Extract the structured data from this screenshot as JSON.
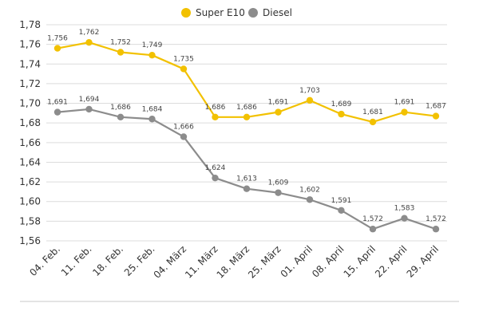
{
  "chart_data": {
    "type": "line",
    "categories": [
      "04. Feb.",
      "11. Feb.",
      "18. Feb.",
      "25. Feb.",
      "04. März",
      "11. März",
      "18. März",
      "25. März",
      "01. April",
      "08. April",
      "15. April",
      "22. April",
      "29. April"
    ],
    "series": [
      {
        "name": "Super E10",
        "color": "#f2c100",
        "values": [
          1.756,
          1.762,
          1.752,
          1.749,
          1.735,
          1.686,
          1.686,
          1.691,
          1.703,
          1.689,
          1.681,
          1.691,
          1.687
        ],
        "labels": [
          "1,756",
          "1,762",
          "1,752",
          "1,749",
          "1,735",
          "1,686",
          "1,686",
          "1,691",
          "1,703",
          "1,689",
          "1,681",
          "1,691",
          "1,687"
        ]
      },
      {
        "name": "Diesel",
        "color": "#8c8c8c",
        "values": [
          1.691,
          1.694,
          1.686,
          1.684,
          1.666,
          1.624,
          1.613,
          1.609,
          1.602,
          1.591,
          1.572,
          1.583,
          1.572
        ],
        "labels": [
          "1,691",
          "1,694",
          "1,686",
          "1,684",
          "1,666",
          "1,624",
          "1,613",
          "1,609",
          "1,602",
          "1,591",
          "1,572",
          "1,583",
          "1,572"
        ]
      }
    ],
    "ylim": [
      1.56,
      1.78
    ],
    "yticks": [
      1.56,
      1.58,
      1.6,
      1.62,
      1.64,
      1.66,
      1.68,
      1.7,
      1.72,
      1.74,
      1.76,
      1.78
    ],
    "ytick_labels": [
      "1,56",
      "1,58",
      "1,60",
      "1,62",
      "1,64",
      "1,66",
      "1,68",
      "1,70",
      "1,72",
      "1,74",
      "1,76",
      "1,78"
    ],
    "grid": true,
    "legend": "top-center"
  }
}
